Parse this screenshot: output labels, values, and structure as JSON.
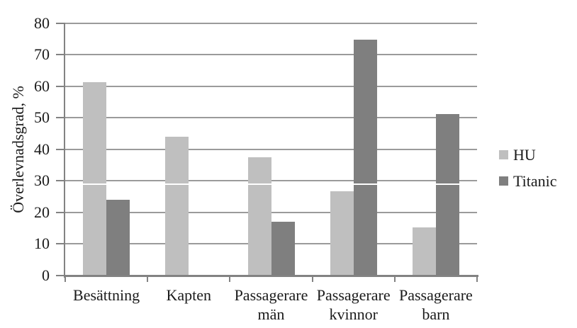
{
  "chart_data": {
    "type": "bar",
    "title": "",
    "ylabel": "Överlevnadsgrad, %",
    "xlabel": "",
    "ylim": [
      0,
      80
    ],
    "yticks": [
      0,
      10,
      20,
      30,
      40,
      50,
      60,
      70,
      80
    ],
    "grid": true,
    "legend_position": "right",
    "categories": [
      "Besättning",
      "Kapten",
      "Passagerare män",
      "Passagerare kvinnor",
      "Passagerare barn"
    ],
    "category_label_lines": [
      [
        "Besättning"
      ],
      [
        "Kapten"
      ],
      [
        "Passagerare",
        "män"
      ],
      [
        "Passagerare",
        "kvinnor"
      ],
      [
        "Passagerare",
        "barn"
      ]
    ],
    "series": [
      {
        "name": "HU",
        "color": "#bfbfbf",
        "values": [
          61.2,
          44.0,
          37.5,
          26.7,
          15.3
        ]
      },
      {
        "name": "Titanic",
        "color": "#7f7f7f",
        "values": [
          23.9,
          0,
          17.0,
          74.7,
          51.2
        ]
      }
    ],
    "colors": {
      "hu_bar": "#bfbfbf",
      "titanic_bar": "#7f7f7f",
      "gridline": "#9b9b9b",
      "axis": "#828282",
      "text": "#1b1b1b",
      "background": "#ffffff"
    }
  }
}
